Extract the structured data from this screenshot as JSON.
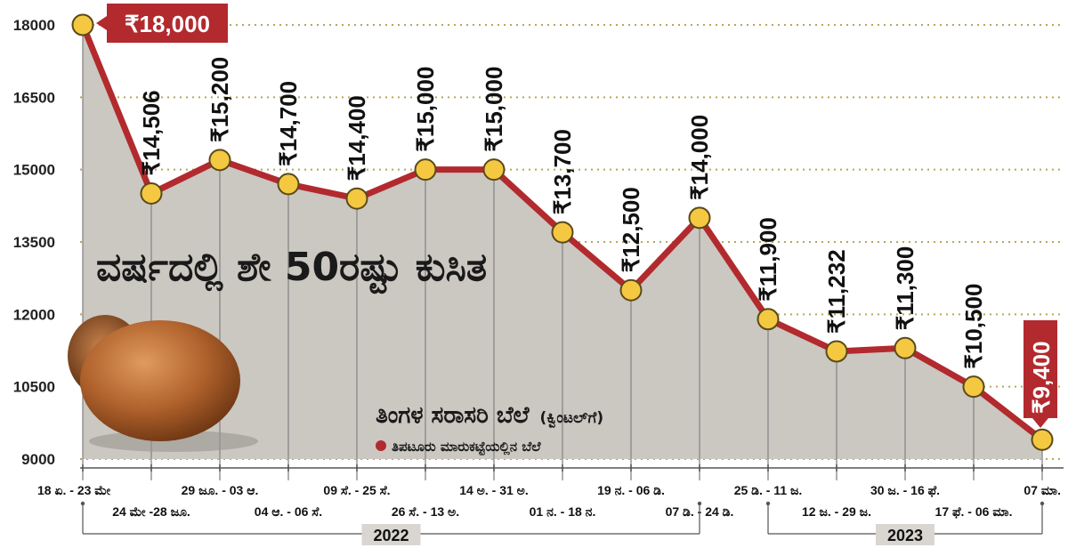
{
  "chart_data": {
    "type": "area",
    "title": "ವರ್ಷದಲ್ಲಿ ಶೇ 50ರಷ್ಟು ಕುಸಿತ",
    "subtitle": "ತಿಂಗಳ ಸರಾಸರಿ ಬೆಲೆ",
    "unit": "(ಕ್ವಿಂಟಲ್‌ಗೆ)",
    "legend": "ತಿಪಟೂರು ಮಾರುಕಟ್ಟೆಯಲ್ಲಿನ ಬೆಲೆ",
    "categories": [
      "18 ಏ. - 23 ಮೇ",
      "24 ಮೇ -28 ಜೂ.",
      "29 ಜೂ. - 03 ಆ.",
      "04 ಆ. - 06 ಸೆ.",
      "09 ಸೆ. - 25 ಸೆ.",
      "26 ಸೆ. - 13 ಅ.",
      "14 ಅ. - 31 ಅ.",
      "01 ನ. - 18 ನ.",
      "19 ನ. - 06 ಡಿ.",
      "07 ಡಿ. - 24 ಡಿ.",
      "25 ಡಿ. - 11 ಜ.",
      "12 ಜ. - 29 ಜ.",
      "30 ಜ. - 16 ಫೆ.",
      "17 ಫೆ. - 06 ಮಾ.",
      "07 ಮಾ."
    ],
    "values": [
      18000,
      14506,
      15200,
      14700,
      14400,
      15000,
      15000,
      13700,
      12500,
      14000,
      11900,
      11232,
      11300,
      10500,
      9400
    ],
    "value_labels": [
      "₹18,000",
      "₹14,506",
      "₹15,200",
      "₹14,700",
      "₹14,400",
      "₹15,000",
      "₹15,000",
      "₹13,700",
      "₹12,500",
      "₹14,000",
      "₹11,900",
      "₹11,232",
      "₹11,300",
      "₹10,500",
      "₹9,400"
    ],
    "highlighted": [
      0,
      14
    ],
    "yticks": [
      "9000",
      "10500",
      "12000",
      "13500",
      "15000",
      "16500",
      "18000"
    ],
    "ylim": [
      9000,
      18000
    ],
    "years": [
      "2022",
      "2023"
    ],
    "year_spans": [
      [
        0,
        9
      ],
      [
        10,
        14
      ]
    ],
    "colors": {
      "line": "#b22a2e",
      "area": "#cbc7c1",
      "marker": "#f5c842",
      "marker_stroke": "#5a4a1a",
      "grid": "#b5a85a",
      "highlight_box": "#b22a2e"
    }
  }
}
